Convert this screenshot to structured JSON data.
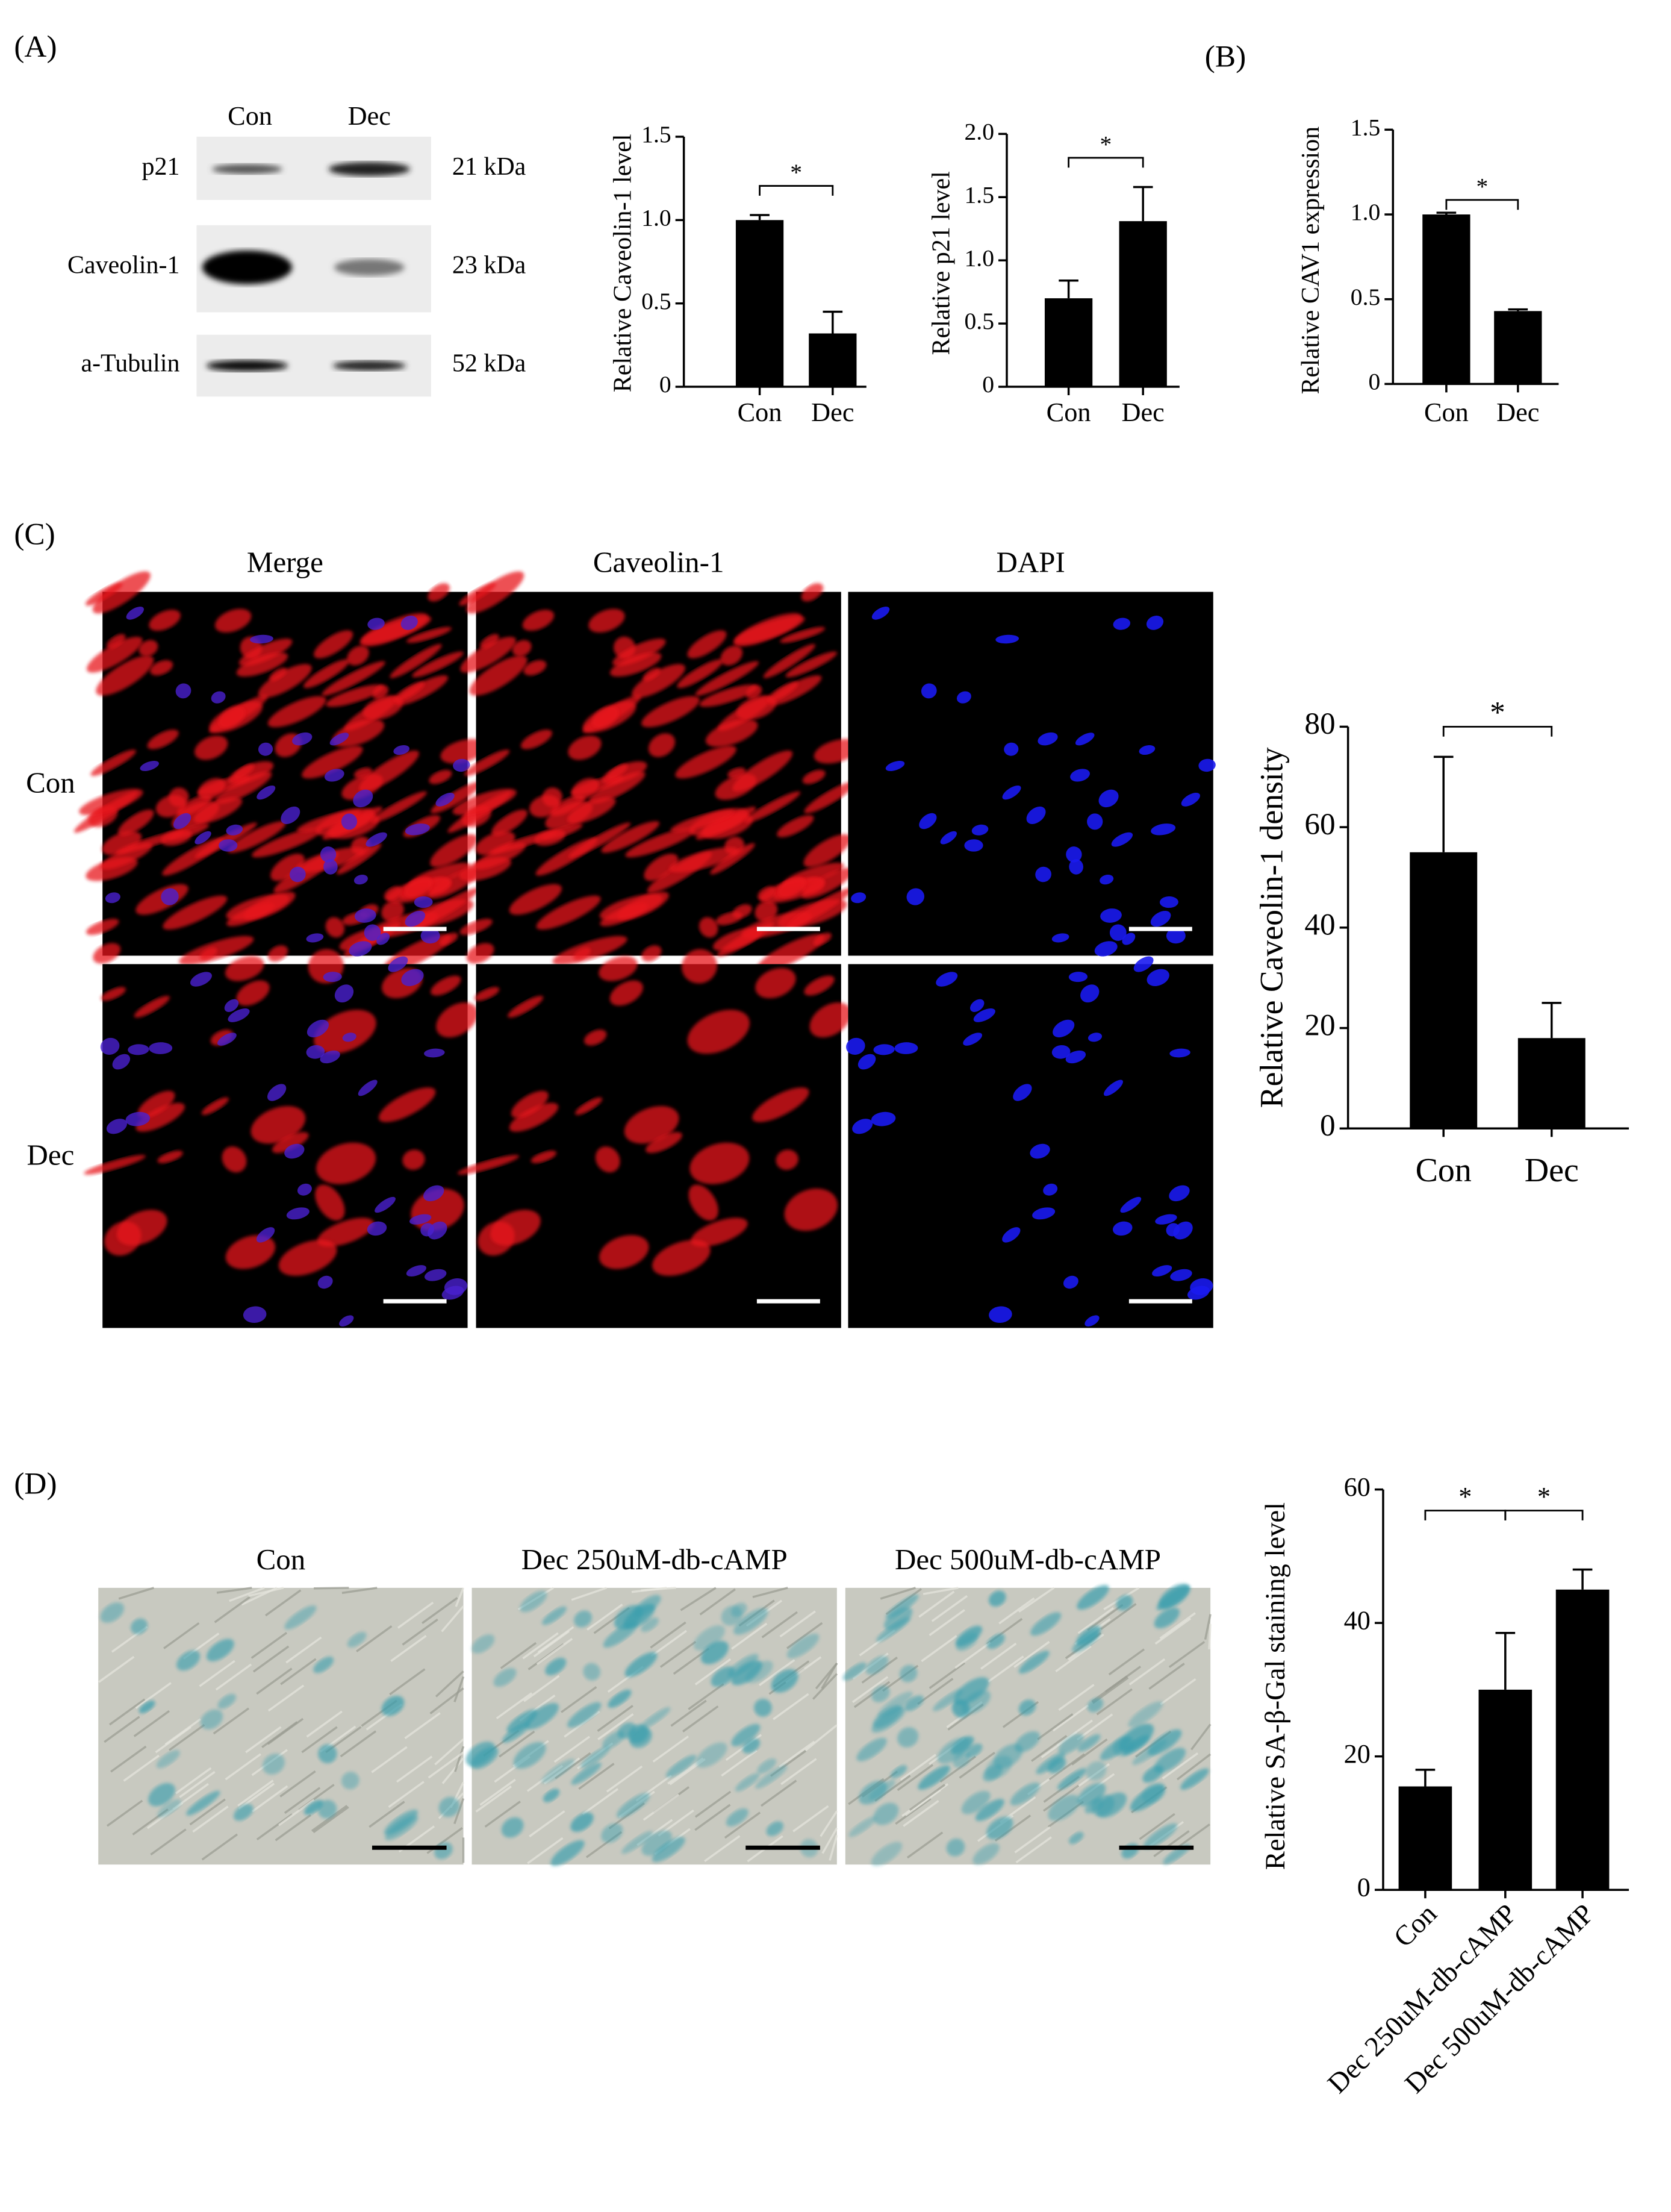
{
  "panels": {
    "A": {
      "label": "(A)",
      "blot": {
        "lanes": [
          "Con",
          "Dec"
        ],
        "rows": [
          {
            "name": "p21",
            "size": "21 kDa"
          },
          {
            "name": "Caveolin-1",
            "size": "23 kDa"
          },
          {
            "name": "a-Tubulin",
            "size": "52 kDa"
          }
        ]
      }
    },
    "B": {
      "label": "(B)"
    },
    "C": {
      "label": "(C)",
      "columns": [
        "Merge",
        "Caveolin-1",
        "DAPI"
      ],
      "rows": [
        "Con",
        "Dec"
      ]
    },
    "D": {
      "label": "(D)",
      "columns": [
        "Con",
        "Dec 250uM-db-cAMP",
        "Dec 500uM-db-cAMP"
      ]
    }
  },
  "chart_data": [
    {
      "type": "bar",
      "y_label": "Relative Caveolin-1 level",
      "categories": [
        "Con",
        "Dec"
      ],
      "values": [
        1.0,
        0.32
      ],
      "errors": [
        0.03,
        0.13
      ],
      "color": "#000000",
      "ylim": [
        0,
        1.5
      ],
      "yticks": [
        0,
        0.5,
        {
          "value": 1,
          "label": "1.0"
        },
        1.5
      ],
      "significance": [
        {
          "from": 0,
          "to": 1,
          "label": "*"
        }
      ]
    },
    {
      "type": "bar",
      "y_label": "Relative p21 level",
      "categories": [
        "Con",
        "Dec"
      ],
      "values": [
        0.7,
        1.31
      ],
      "errors": [
        0.14,
        0.27
      ],
      "color": "#000000",
      "ylim": [
        0,
        2
      ],
      "yticks": [
        0,
        0.5,
        {
          "value": 1,
          "label": "1.0"
        },
        1.5,
        {
          "value": 2,
          "label": "2.0"
        }
      ],
      "significance": [
        {
          "from": 0,
          "to": 1,
          "label": "*"
        }
      ]
    },
    {
      "type": "bar",
      "y_label": "Relative CAV1 expression",
      "categories": [
        "Con",
        "Dec"
      ],
      "values": [
        1.0,
        0.43
      ],
      "errors": [
        0.01,
        0.01
      ],
      "color": "#000000",
      "ylim": [
        0,
        1.5
      ],
      "yticks": [
        0,
        0.5,
        {
          "value": 1,
          "label": "1.0"
        },
        1.5
      ],
      "significance": [
        {
          "from": 0,
          "to": 1,
          "label": "*"
        }
      ]
    },
    {
      "type": "bar",
      "y_label": "Relative Caveolin-1 density",
      "categories": [
        "Con",
        "Dec"
      ],
      "values": [
        55,
        18
      ],
      "errors": [
        19,
        7
      ],
      "color": "#000000",
      "ylim": [
        0,
        80
      ],
      "yticks": [
        0,
        20,
        40,
        60,
        80
      ],
      "significance": [
        {
          "from": 0,
          "to": 1,
          "label": "*"
        }
      ]
    },
    {
      "type": "bar",
      "y_label": "Relative SA-β-Gal staining level",
      "categories": [
        "Con",
        "Dec 250uM-db-cAMP",
        "Dec 500uM-db-cAMP"
      ],
      "values": [
        15.5,
        30,
        45
      ],
      "errors": [
        2.5,
        8.5,
        3
      ],
      "color": "#000000",
      "ylim": [
        0,
        60
      ],
      "yticks": [
        0,
        20,
        40,
        60
      ],
      "significance": [
        {
          "from": 0,
          "to": 1,
          "label": "*"
        },
        {
          "from": 1,
          "to": 2,
          "label": "*"
        }
      ]
    }
  ]
}
